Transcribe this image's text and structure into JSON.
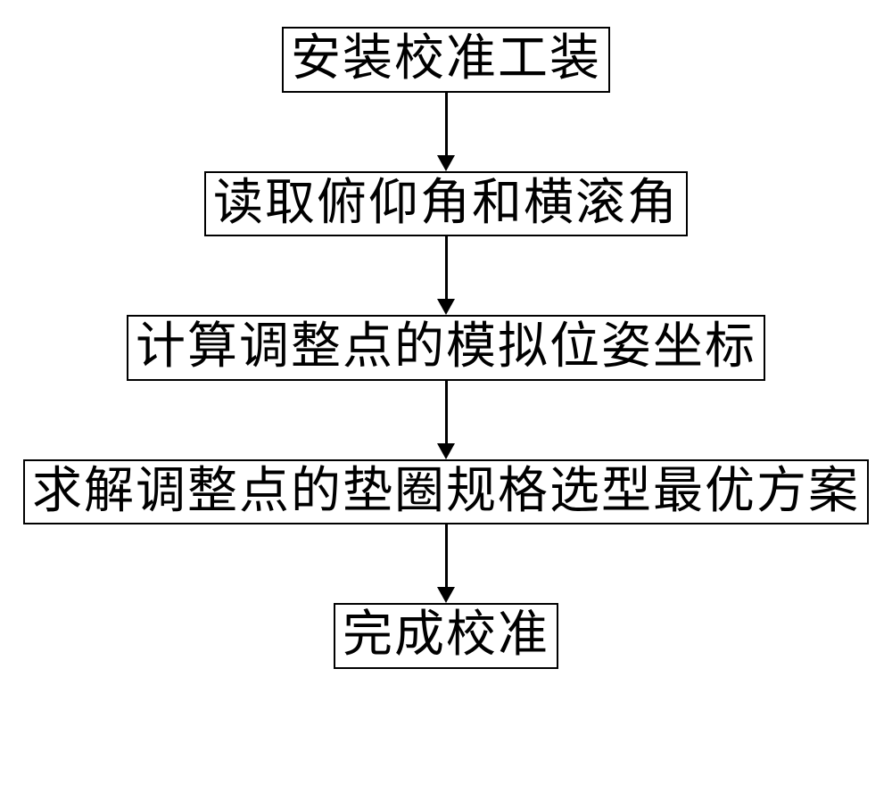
{
  "flowchart": {
    "type": "flowchart",
    "direction": "vertical",
    "background_color": "#ffffff",
    "nodes": [
      {
        "id": "n1",
        "label": "安装校准工装",
        "font_size": 56
      },
      {
        "id": "n2",
        "label": "读取俯仰角和横滚角",
        "font_size": 56
      },
      {
        "id": "n3",
        "label": "计算调整点的模拟位姿坐标",
        "font_size": 56
      },
      {
        "id": "n4",
        "label": "求解调整点的垫圈规格选型最优方案",
        "font_size": 56
      },
      {
        "id": "n5",
        "label": "完成校准",
        "font_size": 56
      }
    ],
    "edges": [
      {
        "from": "n1",
        "to": "n2",
        "length": 70
      },
      {
        "from": "n2",
        "to": "n3",
        "length": 70
      },
      {
        "from": "n3",
        "to": "n4",
        "length": 70
      },
      {
        "from": "n4",
        "to": "n5",
        "length": 70
      }
    ],
    "node_style": {
      "border_color": "#000000",
      "border_width": 2,
      "fill": "#ffffff",
      "text_color": "#000000",
      "font_family": "KaiTi"
    },
    "arrow_style": {
      "line_width": 3,
      "head_width": 20,
      "head_height": 18,
      "color": "#000000"
    }
  }
}
